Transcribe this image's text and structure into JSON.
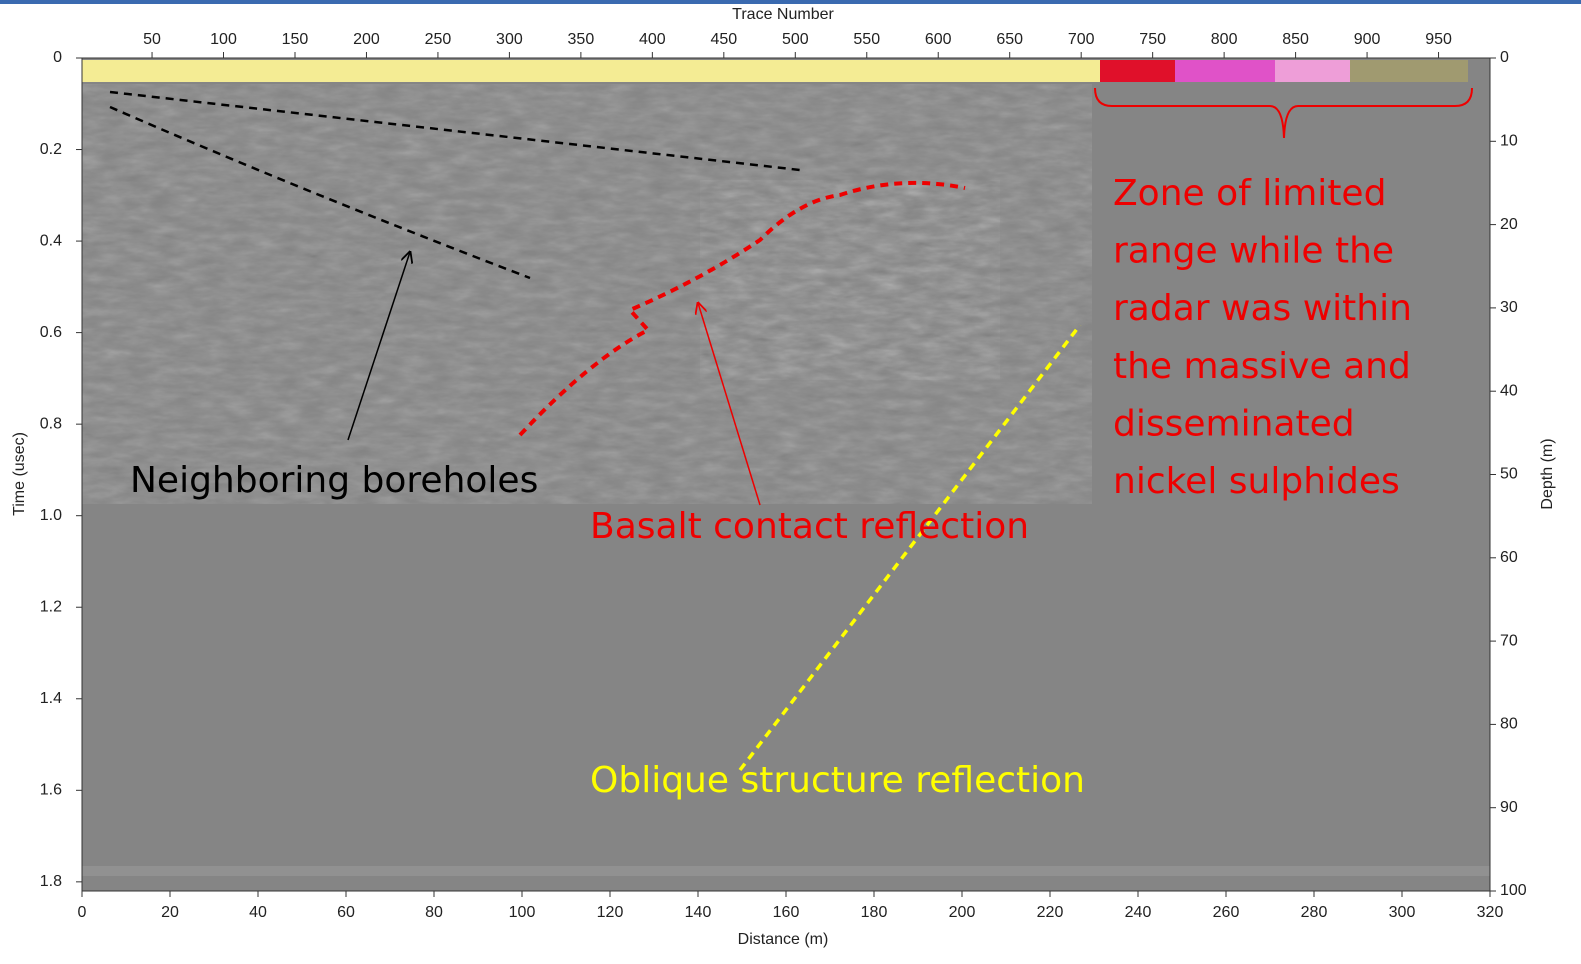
{
  "chart_data": {
    "type": "radargram",
    "x_label": "Distance (m)",
    "x2_label": "Trace Number",
    "y_label": "Time (usec)",
    "y2_label": "Depth (m)",
    "xlim": [
      0,
      320
    ],
    "xticks": [
      0,
      20,
      40,
      60,
      80,
      100,
      120,
      140,
      160,
      180,
      200,
      220,
      240,
      260,
      280,
      300,
      320
    ],
    "x2lim": [
      1,
      986
    ],
    "x2ticks": [
      50,
      100,
      150,
      200,
      250,
      300,
      350,
      400,
      450,
      500,
      550,
      600,
      650,
      700,
      750,
      800,
      850,
      900,
      950
    ],
    "ylim": [
      0,
      1.82
    ],
    "yticks": [
      0,
      0.2,
      0.4,
      0.6,
      0.8,
      {
        "value": 1,
        "label": "1.0"
      },
      1.2,
      1.4,
      1.6,
      1.8
    ],
    "y2lim": [
      0,
      100
    ],
    "y2ticks": [
      0,
      10,
      20,
      30,
      40,
      50,
      60,
      70,
      80,
      90,
      100
    ],
    "annotations": {
      "boreholes": "Neighboring boreholes",
      "basalt": "Basalt contact reflection",
      "oblique": "Oblique structure reflection",
      "zone": [
        "Zone of limited",
        "range while the",
        "radar was within",
        "the massive and",
        "disseminated",
        "nickel sulphides"
      ]
    }
  }
}
